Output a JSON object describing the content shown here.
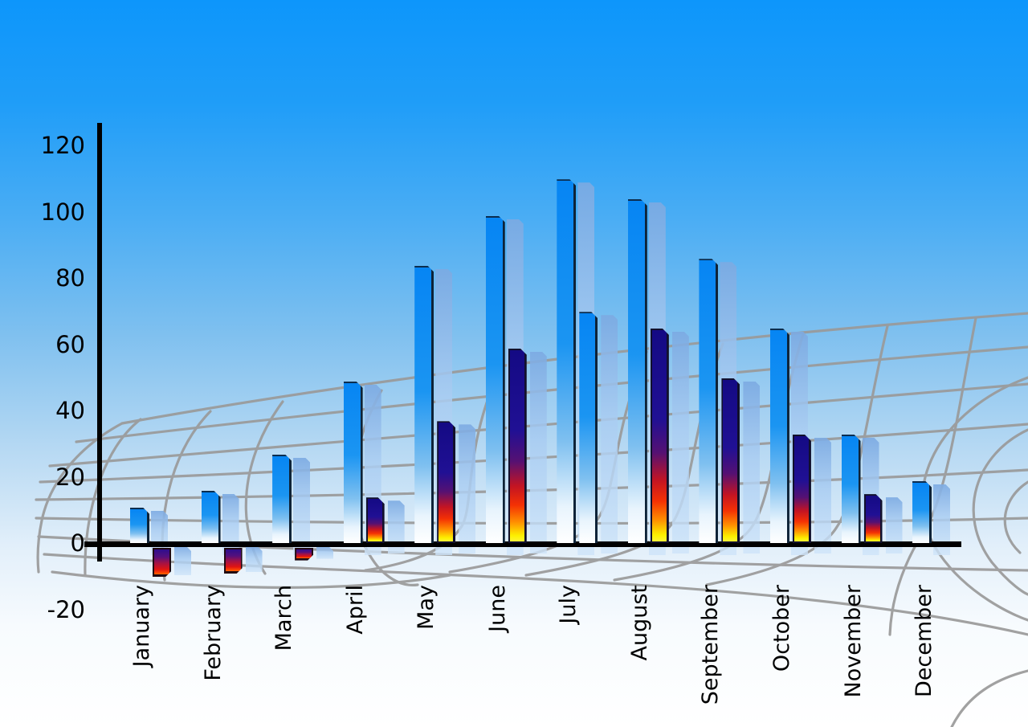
{
  "chart_data": {
    "type": "bar",
    "title": "",
    "legend": "none",
    "categories": [
      "January",
      "February",
      "March",
      "April",
      "May",
      "June",
      "July",
      "August",
      "September",
      "October",
      "November",
      "December"
    ],
    "series": [
      {
        "name": "primary-blue-bars",
        "values": [
          11,
          16,
          27,
          49,
          84,
          99,
          110,
          104,
          86,
          65,
          33,
          19
        ]
      },
      {
        "name": "secondary-fire-bars",
        "values": [
          -10,
          -9,
          -5,
          14,
          37,
          59,
          70,
          65,
          50,
          33,
          15,
          null
        ],
        "style_overrides": {
          "6": "blue"
        }
      }
    ],
    "y_axis": {
      "ticks": [
        120,
        100,
        80,
        60,
        40,
        20,
        0,
        -20
      ],
      "range": [
        -20,
        120
      ],
      "label": ""
    },
    "x_axis": {
      "label": "",
      "tick_rotation": "vertical-bottom-up"
    },
    "grid": "curved gray perspective mesh behind bars",
    "notes": "each bar casts a translucent light-blue offset shadow copy; December has no secondary bar"
  },
  "colors": {
    "sky_top": "#0d96fb",
    "sky_bottom": "#ffffff",
    "bar_blue_top": "#0685f3",
    "bar_blue_bottom": "#ffffff",
    "fire_navy": "#1c0d96",
    "fire_red": "#e01411",
    "fire_yellow": "#fdf000",
    "shadow_blue": "#9cc3ec",
    "grid_gray": "#9a9a9a",
    "axis_black": "#000000",
    "text_black": "#000000"
  }
}
